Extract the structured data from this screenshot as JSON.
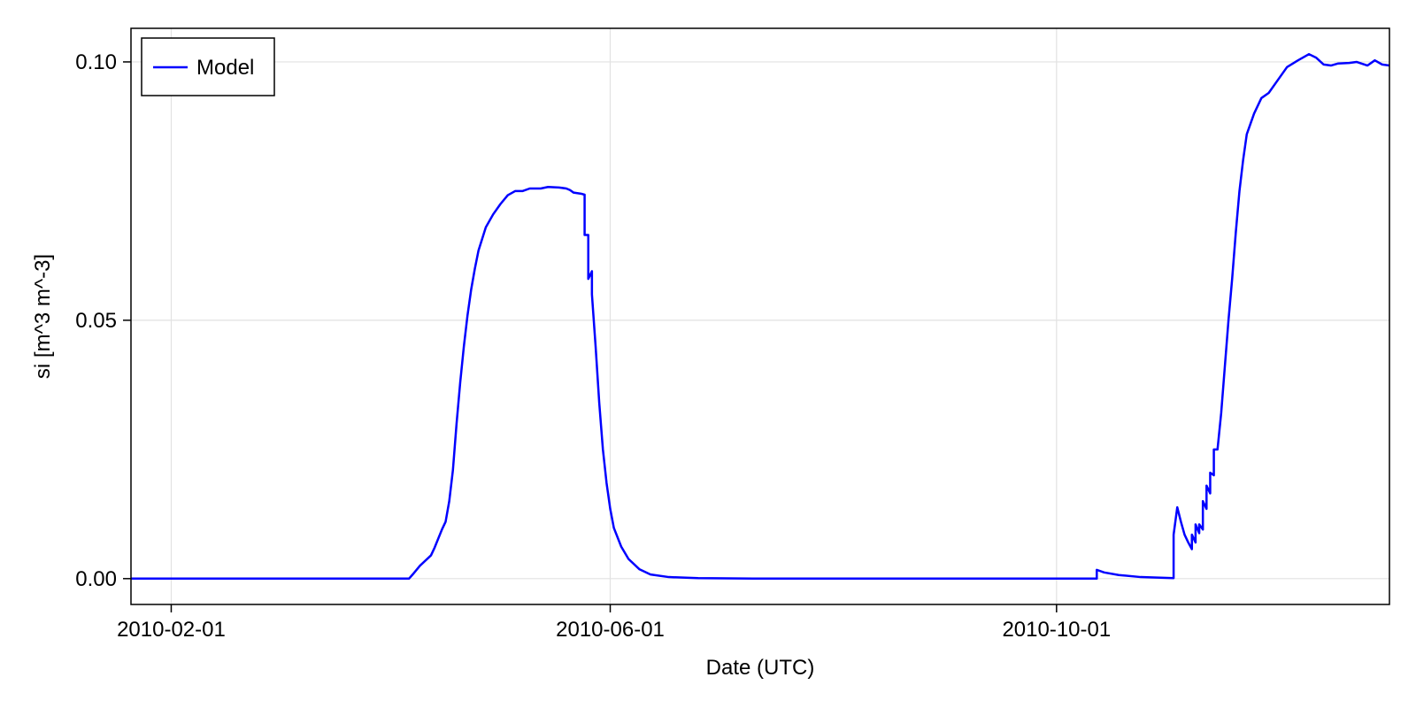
{
  "chart_data": {
    "type": "line",
    "title": "",
    "xlabel": "Date (UTC)",
    "ylabel": "si [m^3 m^-3]",
    "xlim": [
      "2010-01-21",
      "2010-12-31"
    ],
    "ylim": [
      -0.005,
      0.1065
    ],
    "x_ticks": [
      "2010-02-01",
      "2010-06-01",
      "2010-10-01"
    ],
    "y_ticks": [
      0.0,
      0.05,
      0.1
    ],
    "y_tick_labels": [
      "0.00",
      "0.05",
      "0.10"
    ],
    "grid": true,
    "legend": {
      "position": "top-left",
      "entries": [
        "Model"
      ]
    },
    "series": [
      {
        "name": "Model",
        "color": "#0000ff",
        "points": [
          [
            "2010-01-21",
            0.0
          ],
          [
            "2010-02-15",
            0.0
          ],
          [
            "2010-03-15",
            0.0
          ],
          [
            "2010-04-07",
            0.0
          ],
          [
            "2010-04-08",
            0.0008
          ],
          [
            "2010-04-10",
            0.0025
          ],
          [
            "2010-04-13",
            0.0045
          ],
          [
            "2010-04-14",
            0.006
          ],
          [
            "2010-04-16",
            0.0095
          ],
          [
            "2010-04-17",
            0.011
          ],
          [
            "2010-04-18",
            0.015
          ],
          [
            "2010-04-19",
            0.021
          ],
          [
            "2010-04-20",
            0.03
          ],
          [
            "2010-04-21",
            0.038
          ],
          [
            "2010-04-22",
            0.045
          ],
          [
            "2010-04-23",
            0.051
          ],
          [
            "2010-04-24",
            0.056
          ],
          [
            "2010-04-25",
            0.06
          ],
          [
            "2010-04-26",
            0.0635
          ],
          [
            "2010-04-28",
            0.068
          ],
          [
            "2010-04-30",
            0.0705
          ],
          [
            "2010-05-02",
            0.0725
          ],
          [
            "2010-05-04",
            0.0742
          ],
          [
            "2010-05-06",
            0.075
          ],
          [
            "2010-05-08",
            0.075
          ],
          [
            "2010-05-10",
            0.0755
          ],
          [
            "2010-05-13",
            0.0755
          ],
          [
            "2010-05-15",
            0.0758
          ],
          [
            "2010-05-18",
            0.0757
          ],
          [
            "2010-05-20",
            0.0755
          ],
          [
            "2010-05-21",
            0.0752
          ],
          [
            "2010-05-22",
            0.0747
          ],
          [
            "2010-05-24",
            0.0745
          ],
          [
            "2010-05-25",
            0.0743
          ],
          [
            "2010-05-25",
            0.0665
          ],
          [
            "2010-05-26",
            0.0665
          ],
          [
            "2010-05-26",
            0.058
          ],
          [
            "2010-05-27",
            0.0595
          ],
          [
            "2010-05-27",
            0.055
          ],
          [
            "2010-05-28",
            0.045
          ],
          [
            "2010-05-29",
            0.034
          ],
          [
            "2010-05-30",
            0.025
          ],
          [
            "2010-05-31",
            0.0185
          ],
          [
            "2010-06-01",
            0.0135
          ],
          [
            "2010-06-02",
            0.0098
          ],
          [
            "2010-06-04",
            0.0062
          ],
          [
            "2010-06-06",
            0.0038
          ],
          [
            "2010-06-09",
            0.0018
          ],
          [
            "2010-06-12",
            0.0008
          ],
          [
            "2010-06-17",
            0.0003
          ],
          [
            "2010-06-25",
            0.0001
          ],
          [
            "2010-07-10",
            0.0
          ],
          [
            "2010-08-15",
            0.0
          ],
          [
            "2010-09-20",
            0.0
          ],
          [
            "2010-10-12",
            0.0
          ],
          [
            "2010-10-12",
            0.0017
          ],
          [
            "2010-10-14",
            0.0012
          ],
          [
            "2010-10-18",
            0.0007
          ],
          [
            "2010-10-24",
            0.0003
          ],
          [
            "2010-11-02",
            0.0001
          ],
          [
            "2010-11-02",
            0.0085
          ],
          [
            "2010-11-03",
            0.0138
          ],
          [
            "2010-11-04",
            0.011
          ],
          [
            "2010-11-05",
            0.0085
          ],
          [
            "2010-11-06",
            0.007
          ],
          [
            "2010-11-07",
            0.0057
          ],
          [
            "2010-11-07",
            0.0085
          ],
          [
            "2010-11-08",
            0.007
          ],
          [
            "2010-11-08",
            0.0105
          ],
          [
            "2010-11-09",
            0.0088
          ],
          [
            "2010-11-09",
            0.0105
          ],
          [
            "2010-11-10",
            0.0095
          ],
          [
            "2010-11-10",
            0.015
          ],
          [
            "2010-11-11",
            0.0135
          ],
          [
            "2010-11-11",
            0.018
          ],
          [
            "2010-11-12",
            0.0165
          ],
          [
            "2010-11-12",
            0.0205
          ],
          [
            "2010-11-13",
            0.02
          ],
          [
            "2010-11-13",
            0.025
          ],
          [
            "2010-11-14",
            0.025
          ],
          [
            "2010-11-15",
            0.032
          ],
          [
            "2010-11-16",
            0.041
          ],
          [
            "2010-11-17",
            0.05
          ],
          [
            "2010-11-18",
            0.058
          ],
          [
            "2010-11-19",
            0.067
          ],
          [
            "2010-11-20",
            0.075
          ],
          [
            "2010-11-21",
            0.081
          ],
          [
            "2010-11-22",
            0.086
          ],
          [
            "2010-11-24",
            0.09
          ],
          [
            "2010-11-26",
            0.093
          ],
          [
            "2010-11-28",
            0.094
          ],
          [
            "2010-11-30",
            0.096
          ],
          [
            "2010-12-03",
            0.099
          ],
          [
            "2010-12-06",
            0.1003
          ],
          [
            "2010-12-09",
            0.1015
          ],
          [
            "2010-12-11",
            0.1008
          ],
          [
            "2010-12-13",
            0.0995
          ],
          [
            "2010-12-15",
            0.0993
          ],
          [
            "2010-12-17",
            0.0997
          ],
          [
            "2010-12-20",
            0.0998
          ],
          [
            "2010-12-22",
            0.1
          ],
          [
            "2010-12-25",
            0.0993
          ],
          [
            "2010-12-27",
            0.1003
          ],
          [
            "2010-12-29",
            0.0995
          ],
          [
            "2010-12-31",
            0.0993
          ],
          [
            "2011-01-02",
            0.1002
          ],
          [
            "2011-01-05",
            0.1008
          ],
          [
            "2011-01-07",
            0.101
          ]
        ]
      }
    ]
  }
}
